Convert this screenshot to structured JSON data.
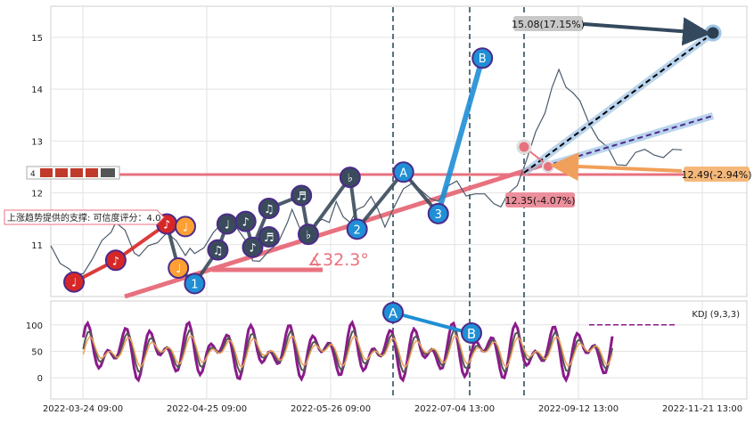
{
  "chart_data": [
    {
      "type": "line",
      "panel": "price",
      "grid": true,
      "y_ticks": [
        11,
        12,
        13,
        14,
        15
      ],
      "ylim": [
        10.0,
        15.6
      ],
      "price_series_approx": [
        [
          0,
          10.9
        ],
        [
          4,
          10.7
        ],
        [
          8,
          10.5
        ],
        [
          10,
          10.35
        ],
        [
          14,
          10.5
        ],
        [
          18,
          10.7
        ],
        [
          22,
          11.0
        ],
        [
          26,
          11.3
        ],
        [
          28,
          11.4
        ],
        [
          32,
          11.2
        ],
        [
          36,
          10.9
        ],
        [
          38,
          10.75
        ],
        [
          42,
          10.9
        ],
        [
          46,
          11.1
        ],
        [
          50,
          11.2
        ],
        [
          54,
          11.0
        ],
        [
          58,
          10.85
        ],
        [
          60,
          10.9
        ],
        [
          62,
          10.75
        ],
        [
          66,
          11.0
        ],
        [
          70,
          11.2
        ],
        [
          74,
          11.35
        ],
        [
          76,
          11.5
        ],
        [
          80,
          11.3
        ],
        [
          84,
          11.0
        ],
        [
          87,
          10.75
        ],
        [
          90,
          10.65
        ],
        [
          94,
          10.8
        ],
        [
          98,
          11.1
        ],
        [
          102,
          11.4
        ],
        [
          104,
          11.6
        ],
        [
          108,
          11.3
        ],
        [
          111,
          11.1
        ],
        [
          114,
          11.35
        ],
        [
          117,
          11.55
        ],
        [
          120,
          11.4
        ],
        [
          123,
          11.75
        ],
        [
          126,
          11.6
        ],
        [
          129,
          11.4
        ],
        [
          132,
          11.6
        ],
        [
          135,
          11.8
        ],
        [
          138,
          11.9
        ],
        [
          141,
          11.6
        ],
        [
          144,
          11.4
        ],
        [
          148,
          11.7
        ],
        [
          152,
          12.0
        ],
        [
          156,
          12.25
        ],
        [
          160,
          12.0
        ],
        [
          164,
          11.8
        ],
        [
          167,
          11.9
        ],
        [
          171,
          12.1
        ],
        [
          175,
          12.15
        ],
        [
          179,
          12.0
        ],
        [
          183,
          11.95
        ],
        [
          187,
          11.9
        ],
        [
          191,
          11.85
        ],
        [
          194,
          11.7
        ],
        [
          197,
          11.9
        ],
        [
          201,
          12.2
        ],
        [
          205,
          12.6
        ],
        [
          209,
          13.1
        ],
        [
          213,
          13.6
        ],
        [
          216,
          14.0
        ],
        [
          219,
          14.3
        ],
        [
          222,
          14.1
        ],
        [
          225,
          13.9
        ],
        [
          228,
          13.7
        ],
        [
          232,
          13.4
        ],
        [
          236,
          13.0
        ],
        [
          240,
          12.8
        ],
        [
          244,
          12.6
        ],
        [
          248,
          12.5
        ],
        [
          252,
          12.7
        ],
        [
          256,
          12.9
        ],
        [
          260,
          12.7
        ],
        [
          264,
          12.6
        ],
        [
          268,
          12.9
        ],
        [
          272,
          12.8
        ]
      ],
      "patterns": [
        {
          "label": "♩",
          "x": 10,
          "y": 10.28,
          "color": "#d62728"
        },
        {
          "label": "♪",
          "x": 28,
          "y": 10.7,
          "color": "#d62728"
        },
        {
          "label": "♪",
          "x": 50,
          "y": 11.4,
          "color": "#d62728"
        },
        {
          "label": "♩",
          "x": 58,
          "y": 11.35,
          "color": "#ffa033"
        },
        {
          "label": "♩",
          "x": 55,
          "y": 10.55,
          "color": "#ffa033"
        },
        {
          "label": "1",
          "x": 62,
          "y": 10.25,
          "color": "#1f8fd6"
        },
        {
          "label": "♩",
          "x": 76,
          "y": 11.4,
          "color": "#3a4b5c"
        },
        {
          "label": "♫",
          "x": 72,
          "y": 10.9,
          "color": "#3a4b5c"
        },
        {
          "label": "♪",
          "x": 84,
          "y": 11.45,
          "color": "#3a4b5c"
        },
        {
          "label": "♪",
          "x": 87,
          "y": 10.95,
          "color": "#3a4b5c"
        },
        {
          "label": "♫",
          "x": 94,
          "y": 11.7,
          "color": "#3a4b5c"
        },
        {
          "label": "♬",
          "x": 94,
          "y": 11.15,
          "color": "#3a4b5c"
        },
        {
          "label": "♬",
          "x": 108,
          "y": 11.95,
          "color": "#3a4b5c"
        },
        {
          "label": "♭",
          "x": 111,
          "y": 11.2,
          "color": "#3a4b5c"
        },
        {
          "label": "♭",
          "x": 129,
          "y": 12.3,
          "color": "#3a4b5c"
        },
        {
          "label": "2",
          "x": 132,
          "y": 11.3,
          "color": "#1f8fd6"
        },
        {
          "label": "A",
          "x": 152,
          "y": 12.4,
          "color": "#1f8fd6"
        },
        {
          "label": "3",
          "x": 167,
          "y": 11.6,
          "color": "#1f8fd6"
        },
        {
          "label": "B",
          "x": 186,
          "y": 14.6,
          "color": "#1f8fd6"
        }
      ],
      "support_label": "上涨趋势提供的支撑: 可信度评分：4.0",
      "angle_label": "∡32.3°",
      "resistance_level": 12.35,
      "annotations": [
        {
          "text": "15.08(17.15%)",
          "style": "gray",
          "target_x": 270,
          "target_y": 15.08
        },
        {
          "text": "12.49(-2.94%)",
          "style": "orange",
          "target_x": 213,
          "target_y": 12.49
        },
        {
          "text": "12.35(-4.07%)",
          "style": "pink",
          "target_x": 197,
          "target_y": 12.35
        }
      ],
      "corner_label": "4 ▣▣▣▣▣▣▣▣▣▣▣ ▣▣▣▣"
    },
    {
      "type": "line",
      "panel": "indicator",
      "title": "KDJ (9,3,3)",
      "grid": true,
      "y_ticks": [
        0,
        50,
        100
      ],
      "ylim": [
        -40,
        145
      ],
      "x_tick_labels": [
        "2022-03-24 09:00",
        "2022-04-25 09:00",
        "2022-05-26 09:00",
        "2022-07-04 13:00",
        "2022-09-12 13:00",
        "2022-11-21 13:00"
      ],
      "points": [
        {
          "label": "A",
          "x": 152,
          "y": 118
        },
        {
          "label": "B",
          "x": 186,
          "y": 85
        }
      ]
    }
  ]
}
